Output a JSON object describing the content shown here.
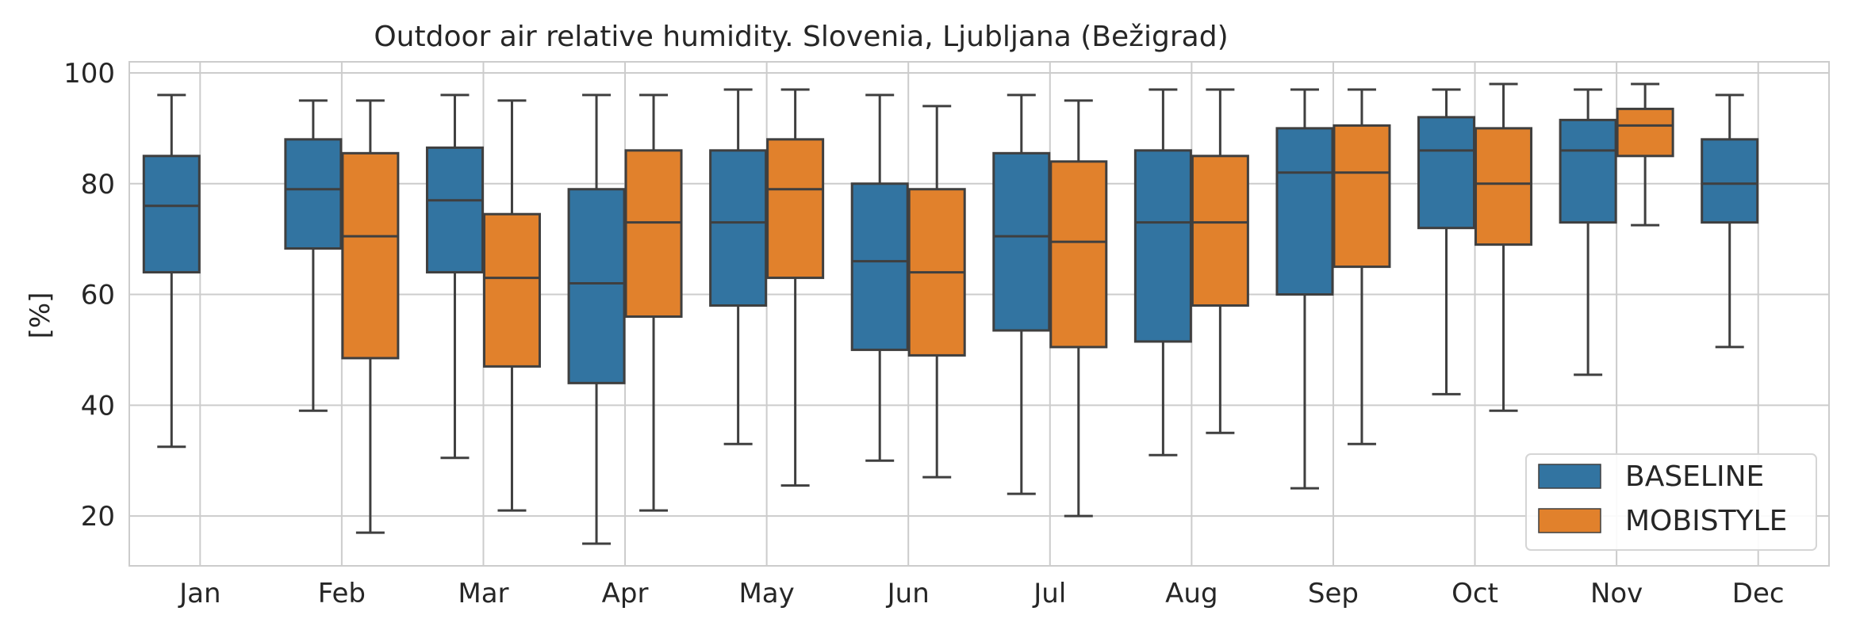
{
  "chart_data": {
    "type": "boxplot",
    "title": "Outdoor air relative humidity. Slovenia, Ljubljana (Bežigrad)",
    "xlabel": "",
    "ylabel": "[%]",
    "ylim": [
      11,
      102
    ],
    "yticks": [
      20,
      40,
      60,
      80,
      100
    ],
    "grid": true,
    "legend_position": "bottom-right",
    "categories": [
      "Jan",
      "Feb",
      "Mar",
      "Apr",
      "May",
      "Jun",
      "Jul",
      "Aug",
      "Sep",
      "Oct",
      "Nov",
      "Dec"
    ],
    "series": [
      {
        "name": "BASELINE",
        "color": "#3274a1",
        "boxes": [
          {
            "min": 32.5,
            "q1": 64,
            "median": 76,
            "q3": 85,
            "max": 96
          },
          {
            "min": 39,
            "q1": 68.3,
            "median": 79,
            "q3": 88,
            "max": 95
          },
          {
            "min": 30.5,
            "q1": 64,
            "median": 77,
            "q3": 86.5,
            "max": 96
          },
          {
            "min": 15,
            "q1": 44,
            "median": 62,
            "q3": 79,
            "max": 96
          },
          {
            "min": 33,
            "q1": 58,
            "median": 73,
            "q3": 86,
            "max": 97
          },
          {
            "min": 30,
            "q1": 50,
            "median": 66,
            "q3": 80,
            "max": 96
          },
          {
            "min": 24,
            "q1": 53.5,
            "median": 70.5,
            "q3": 85.5,
            "max": 96
          },
          {
            "min": 31,
            "q1": 51.5,
            "median": 73,
            "q3": 86,
            "max": 97
          },
          {
            "min": 25,
            "q1": 60,
            "median": 82,
            "q3": 90,
            "max": 97
          },
          {
            "min": 42,
            "q1": 72,
            "median": 86,
            "q3": 92,
            "max": 97
          },
          {
            "min": 45.5,
            "q1": 73,
            "median": 86,
            "q3": 91.5,
            "max": 97
          },
          {
            "min": 50.5,
            "q1": 73,
            "median": 80,
            "q3": 88,
            "max": 96
          }
        ]
      },
      {
        "name": "MOBISTYLE",
        "color": "#e1812c",
        "boxes": [
          null,
          {
            "min": 17,
            "q1": 48.5,
            "median": 70.5,
            "q3": 85.5,
            "max": 95
          },
          {
            "min": 21,
            "q1": 47,
            "median": 63,
            "q3": 74.5,
            "max": 95
          },
          {
            "min": 21,
            "q1": 56,
            "median": 73,
            "q3": 86,
            "max": 96
          },
          {
            "min": 25.5,
            "q1": 63,
            "median": 79,
            "q3": 88,
            "max": 97
          },
          {
            "min": 27,
            "q1": 49,
            "median": 64,
            "q3": 79,
            "max": 94
          },
          {
            "min": 20,
            "q1": 50.5,
            "median": 69.5,
            "q3": 84,
            "max": 95
          },
          {
            "min": 35,
            "q1": 58,
            "median": 73,
            "q3": 85,
            "max": 97
          },
          {
            "min": 33,
            "q1": 65,
            "median": 82,
            "q3": 90.5,
            "max": 97
          },
          {
            "min": 39,
            "q1": 69,
            "median": 80,
            "q3": 90,
            "max": 98
          },
          {
            "min": 72.5,
            "q1": 85,
            "median": 90.5,
            "q3": 93.5,
            "max": 98
          },
          null
        ]
      }
    ]
  }
}
